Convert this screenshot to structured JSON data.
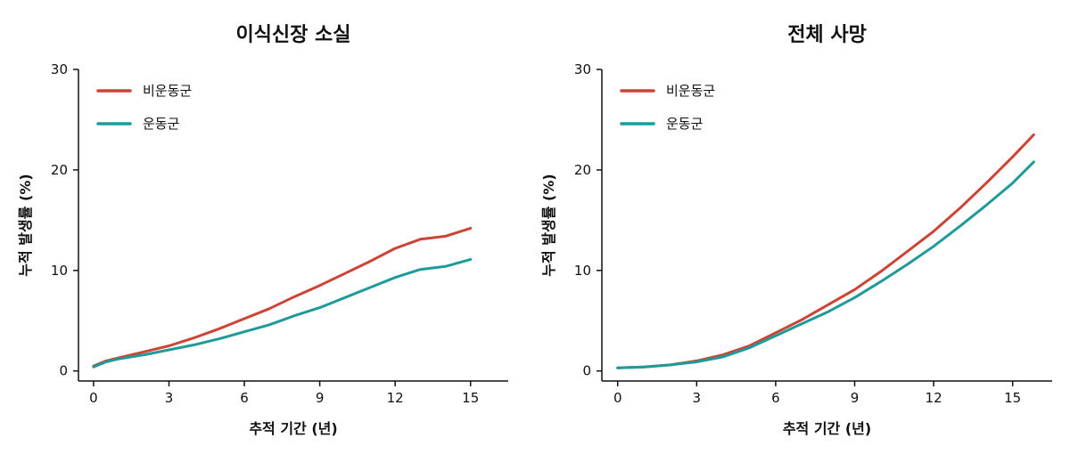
{
  "colors": {
    "non_exercise": "#cc4435",
    "exercise": "#1f9a9a"
  },
  "chart_data": [
    {
      "type": "line",
      "title": "이식신장 소실",
      "xlabel": "추적 기간 (년)",
      "ylabel": "누적 발생률 (%)",
      "xlim": [
        -0.6,
        16.5
      ],
      "ylim": [
        -1.0,
        30.0
      ],
      "xticks": [
        0,
        3,
        6,
        9,
        12,
        15
      ],
      "yticks": [
        0,
        10,
        20,
        30
      ],
      "legend_position": "top-left",
      "series": [
        {
          "name": "비운동군",
          "color": "#cc4435",
          "x": [
            0,
            0.5,
            1,
            2,
            3,
            4,
            5,
            6,
            7,
            8,
            9,
            10,
            11,
            12,
            13,
            14,
            15
          ],
          "y": [
            0.5,
            1.0,
            1.3,
            1.9,
            2.5,
            3.3,
            4.2,
            5.2,
            6.2,
            7.4,
            8.5,
            9.7,
            10.9,
            12.2,
            13.1,
            13.4,
            14.2
          ]
        },
        {
          "name": "운동군",
          "color": "#1f9a9a",
          "x": [
            0,
            0.5,
            1,
            2,
            3,
            4,
            5,
            6,
            7,
            8,
            9,
            10,
            11,
            12,
            13,
            14,
            15
          ],
          "y": [
            0.4,
            0.9,
            1.2,
            1.6,
            2.1,
            2.6,
            3.2,
            3.9,
            4.6,
            5.5,
            6.3,
            7.3,
            8.3,
            9.3,
            10.1,
            10.4,
            11.1
          ]
        }
      ]
    },
    {
      "type": "line",
      "title": "전체 사망",
      "xlabel": "추적 기간 (년)",
      "ylabel": "누적 발생률 (%)",
      "xlim": [
        -0.6,
        16.5
      ],
      "ylim": [
        -1.0,
        30.0
      ],
      "xticks": [
        0,
        3,
        6,
        9,
        12,
        15
      ],
      "yticks": [
        0,
        10,
        20,
        30
      ],
      "legend_position": "top-left",
      "series": [
        {
          "name": "비운동군",
          "color": "#cc4435",
          "x": [
            0,
            1,
            2,
            3,
            4,
            5,
            6,
            7,
            8,
            9,
            10,
            11,
            12,
            13,
            14,
            15,
            15.8
          ],
          "y": [
            0.3,
            0.4,
            0.6,
            1.0,
            1.6,
            2.5,
            3.8,
            5.1,
            6.6,
            8.1,
            9.9,
            11.9,
            13.9,
            16.2,
            18.7,
            21.3,
            23.5
          ]
        },
        {
          "name": "운동군",
          "color": "#1f9a9a",
          "x": [
            0,
            1,
            2,
            3,
            4,
            5,
            6,
            7,
            8,
            9,
            10,
            11,
            12,
            13,
            14,
            15,
            15.8
          ],
          "y": [
            0.3,
            0.4,
            0.6,
            0.9,
            1.4,
            2.3,
            3.5,
            4.7,
            5.9,
            7.3,
            8.9,
            10.6,
            12.4,
            14.4,
            16.5,
            18.7,
            20.8
          ]
        }
      ]
    }
  ]
}
